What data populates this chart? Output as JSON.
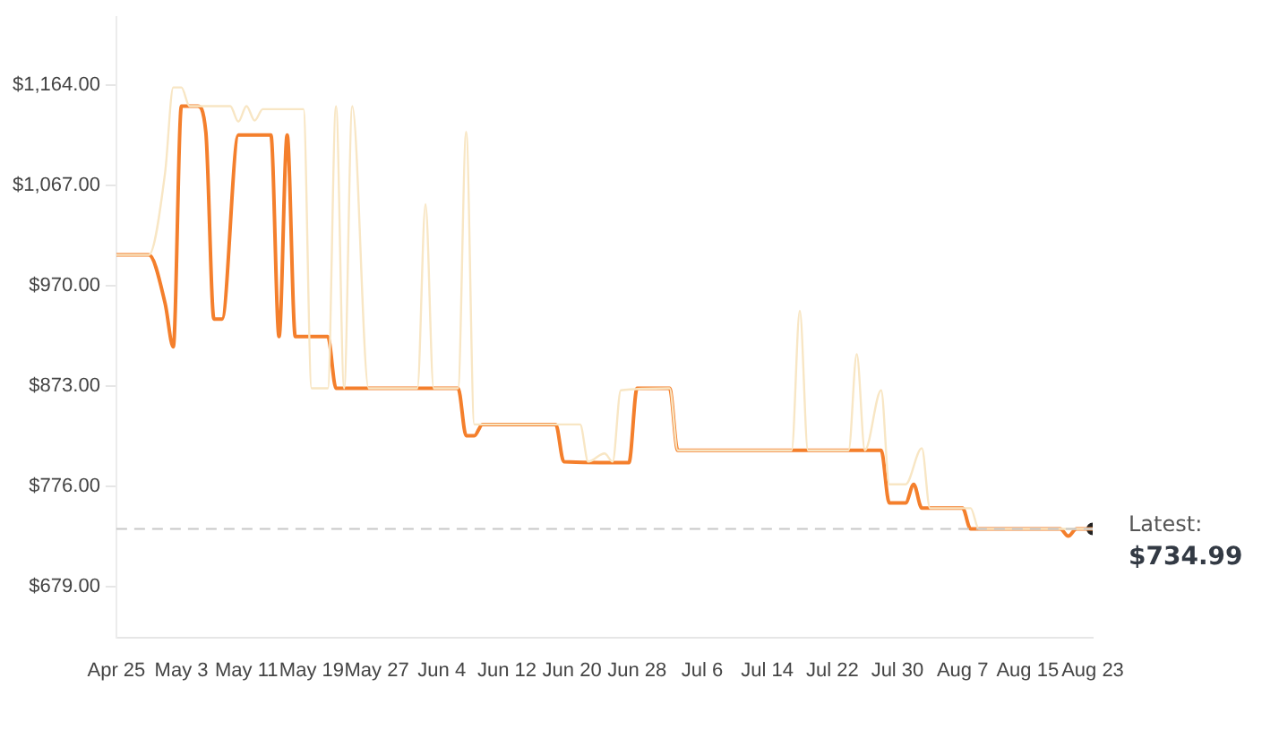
{
  "chart_data": {
    "type": "line",
    "ylim": [
      630,
      1230
    ],
    "yticks": [
      {
        "value": 679,
        "label": "$679.00"
      },
      {
        "value": 776,
        "label": "$776.00"
      },
      {
        "value": 873,
        "label": "$873.00"
      },
      {
        "value": 970,
        "label": "$970.00"
      },
      {
        "value": 1067,
        "label": "$1,067.00"
      },
      {
        "value": 1164,
        "label": "$1,164.00"
      }
    ],
    "xlim": [
      "--04-25",
      "--08-23"
    ],
    "xticks": [
      {
        "value": "--04-25",
        "label": "Apr 25"
      },
      {
        "value": "--05-03",
        "label": "May 3"
      },
      {
        "value": "--05-11",
        "label": "May 11"
      },
      {
        "value": "--05-19",
        "label": "May 19"
      },
      {
        "value": "--05-27",
        "label": "May 27"
      },
      {
        "value": "--06-04",
        "label": "Jun 4"
      },
      {
        "value": "--06-12",
        "label": "Jun 12"
      },
      {
        "value": "--06-20",
        "label": "Jun 20"
      },
      {
        "value": "--06-28",
        "label": "Jun 28"
      },
      {
        "value": "--07-06",
        "label": "Jul 6"
      },
      {
        "value": "--07-14",
        "label": "Jul 14"
      },
      {
        "value": "--07-22",
        "label": "Jul 22"
      },
      {
        "value": "--07-30",
        "label": "Jul 30"
      },
      {
        "value": "--08-07",
        "label": "Aug 7"
      },
      {
        "value": "--08-15",
        "label": "Aug 15"
      },
      {
        "value": "--08-23",
        "label": "Aug 23"
      }
    ],
    "series": [
      {
        "color": "#f8e6c4",
        "x": [
          "--04-25",
          "--04-29",
          "--05-01",
          "--05-02",
          "--05-03",
          "--05-04",
          "--05-09",
          "--05-10",
          "--05-11",
          "--05-12",
          "--05-13",
          "--05-18",
          "--05-19",
          "--05-21",
          "--05-22",
          "--05-23",
          "--05-24",
          "--05-26",
          "--06-01",
          "--06-02",
          "--06-03",
          "--06-06",
          "--06-07",
          "--06-08",
          "--06-18",
          "--06-21",
          "--06-22",
          "--06-24",
          "--06-25",
          "--06-26",
          "--07-02",
          "--07-03",
          "--07-17",
          "--07-18",
          "--07-19",
          "--07-24",
          "--07-25",
          "--07-26",
          "--07-28",
          "--07-29",
          "--07-31",
          "--08-02",
          "--08-03",
          "--08-08",
          "--08-09",
          "--08-23"
        ],
        "values": [
          1000,
          1000,
          1080,
          1162,
          1162,
          1144,
          1144,
          1129,
          1144,
          1130,
          1141,
          1141,
          871,
          871,
          1144,
          871,
          1144,
          871,
          871,
          1049,
          871,
          871,
          1119,
          836,
          836,
          836,
          800,
          808,
          800,
          869,
          871,
          811,
          811,
          946,
          811,
          811,
          904,
          811,
          869,
          778,
          778,
          813,
          755,
          755,
          735,
          735
        ]
      },
      {
        "color": "#f47f2c",
        "x": [
          "--04-25",
          "--04-29",
          "--05-01",
          "--05-02",
          "--05-03",
          "--05-05",
          "--05-06",
          "--05-07",
          "--05-08",
          "--05-10",
          "--05-14",
          "--05-15",
          "--05-16",
          "--05-17",
          "--05-21",
          "--05-22",
          "--06-06",
          "--06-07",
          "--06-08",
          "--06-09",
          "--06-18",
          "--06-19",
          "--06-27",
          "--06-28",
          "--07-02",
          "--07-03",
          "--07-28",
          "--07-29",
          "--07-31",
          "--08-01",
          "--08-02",
          "--08-07",
          "--08-08",
          "--08-19",
          "--08-20",
          "--08-21",
          "--08-23"
        ],
        "values": [
          1000,
          1000,
          953,
          911,
          1144,
          1144,
          1119,
          938,
          938,
          1116,
          1116,
          921,
          1116,
          921,
          921,
          871,
          871,
          825,
          825,
          836,
          836,
          800,
          799,
          871,
          871,
          811,
          811,
          760,
          760,
          778,
          755,
          755,
          735,
          735,
          728,
          735,
          734.99
        ]
      },
      {
        "type": "scatter",
        "color": "#222222",
        "marker": "circle",
        "x": [
          "--08-23"
        ],
        "values": [
          734.99
        ]
      }
    ],
    "ref_lines": [
      {
        "axis": "y",
        "value": 734.99,
        "color": "#c8c8c8",
        "line_style": "dashed"
      }
    ],
    "annotations": [
      "Latest:",
      "$734.99"
    ]
  }
}
